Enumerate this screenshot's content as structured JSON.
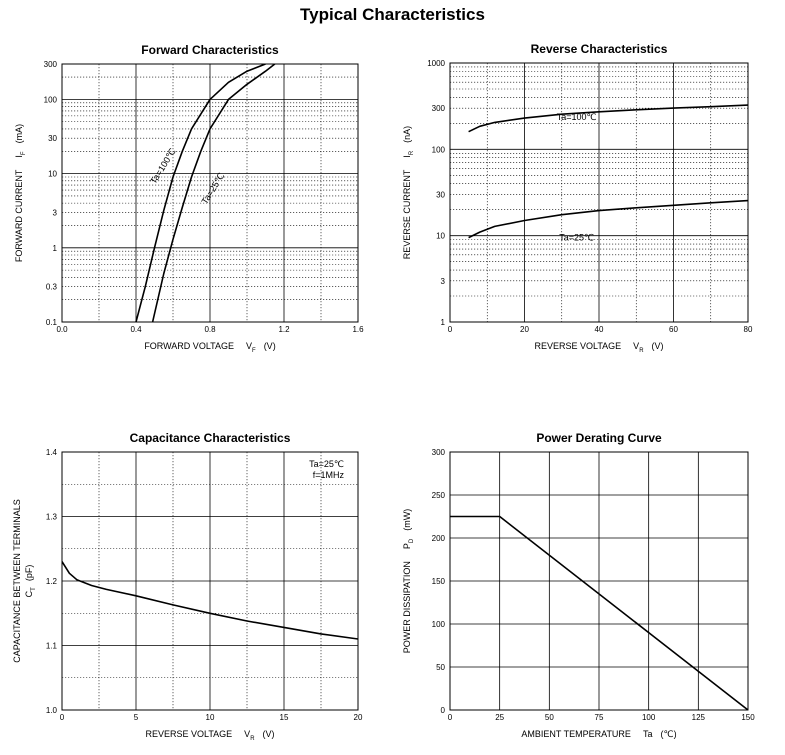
{
  "page": {
    "title": "Typical Characteristics"
  },
  "chart_data": [
    {
      "id": "forward",
      "type": "line",
      "title": "Forward Characteristics",
      "xlabel": "FORWARD VOLTAGE",
      "xlabel_symbol": "V",
      "xlabel_sub": "F",
      "xlabel_unit": "(V)",
      "ylabel": "FORWARD CURRENT",
      "ylabel_symbol": "I",
      "ylabel_sub": "F",
      "ylabel_unit": "(mA)",
      "xscale": "linear",
      "yscale": "log",
      "xlim": [
        0,
        1.6
      ],
      "ylim": [
        0.1,
        300
      ],
      "xticks": [
        0,
        0.4,
        0.8,
        1.2,
        1.6
      ],
      "xtick_labels": [
        "0.0",
        "0.4",
        "0.8",
        "1.2",
        "1.6"
      ],
      "xgrid_minor": [
        0.2,
        0.6,
        1.0,
        1.4
      ],
      "yticks": [
        0.1,
        0.3,
        1,
        3,
        10,
        30,
        100,
        300
      ],
      "ytick_labels": [
        "0.1",
        "0.3",
        "1",
        "3",
        "10",
        "30",
        "100",
        "300"
      ],
      "grid": true,
      "series": [
        {
          "name": "Ta=100℃",
          "label_at": [
            0.56,
            12
          ],
          "label_rotation": -58,
          "x": [
            0.4,
            0.45,
            0.5,
            0.55,
            0.6,
            0.65,
            0.7,
            0.8,
            0.9,
            1.0,
            1.1
          ],
          "y": [
            0.1,
            0.3,
            1.0,
            3.2,
            9,
            20,
            40,
            100,
            170,
            240,
            300
          ]
        },
        {
          "name": "Ta=25℃",
          "label_at": [
            0.83,
            6
          ],
          "label_rotation": -58,
          "x": [
            0.49,
            0.55,
            0.6,
            0.65,
            0.7,
            0.75,
            0.8,
            0.9,
            1.0,
            1.1,
            1.15
          ],
          "y": [
            0.1,
            0.45,
            1.3,
            3.5,
            9,
            20,
            40,
            100,
            160,
            240,
            300
          ]
        }
      ]
    },
    {
      "id": "reverse",
      "type": "line",
      "title": "Reverse Characteristics",
      "xlabel": "REVERSE VOLTAGE",
      "xlabel_symbol": "V",
      "xlabel_sub": "R",
      "xlabel_unit": "(V)",
      "ylabel": "REVERSE CURRENT",
      "ylabel_symbol": "I",
      "ylabel_sub": "R",
      "ylabel_unit": "(nA)",
      "xscale": "linear",
      "yscale": "log",
      "xlim": [
        0,
        80
      ],
      "ylim": [
        1,
        1000
      ],
      "xticks": [
        0,
        20,
        40,
        60,
        80
      ],
      "xtick_labels": [
        "0",
        "20",
        "40",
        "60",
        "80"
      ],
      "xgrid_minor": [
        10,
        30,
        50,
        70
      ],
      "yticks": [
        1,
        3,
        10,
        30,
        100,
        300,
        1000
      ],
      "ytick_labels": [
        "1",
        "3",
        "10",
        "30",
        "100",
        "300",
        "1000"
      ],
      "grid": true,
      "series": [
        {
          "name": "Ta=100℃",
          "label_at": [
            34,
            220
          ],
          "x": [
            5,
            8,
            12,
            20,
            30,
            40,
            50,
            60,
            70,
            80
          ],
          "y": [
            160,
            185,
            205,
            230,
            255,
            272,
            287,
            300,
            312,
            325
          ]
        },
        {
          "name": "Ta=25℃",
          "label_at": [
            34,
            8.8
          ],
          "x": [
            5,
            8,
            12,
            20,
            30,
            40,
            50,
            60,
            70,
            80
          ],
          "y": [
            9.5,
            11,
            12.8,
            15,
            17.5,
            19.5,
            21,
            22.5,
            24,
            25.5
          ]
        }
      ]
    },
    {
      "id": "capacitance",
      "type": "line",
      "title": "Capacitance Characteristics",
      "xlabel": "REVERSE VOLTAGE",
      "xlabel_symbol": "V",
      "xlabel_sub": "R",
      "xlabel_unit": "(V)",
      "ylabel": "CAPACITANCE BETWEEN TERMINALS",
      "ylabel2_symbol": "C",
      "ylabel2_sub": "T",
      "ylabel2_unit": "(pF)",
      "xscale": "linear",
      "yscale": "linear",
      "xlim": [
        0,
        20
      ],
      "ylim": [
        1.0,
        1.4
      ],
      "xticks": [
        0,
        5,
        10,
        15,
        20
      ],
      "xtick_labels": [
        "0",
        "5",
        "10",
        "15",
        "20"
      ],
      "xgrid_minor": [
        2.5,
        7.5,
        12.5,
        17.5
      ],
      "yticks": [
        1.0,
        1.1,
        1.2,
        1.3,
        1.4
      ],
      "ytick_labels": [
        "1.0",
        "1.1",
        "1.2",
        "1.3",
        "1.4"
      ],
      "ygrid_minor": [
        1.05,
        1.15,
        1.25,
        1.35
      ],
      "grid": true,
      "annotations": [
        "Ta=25℃",
        "f=1MHz"
      ],
      "series": [
        {
          "name": "",
          "x": [
            0,
            0.5,
            1,
            2,
            3,
            5,
            7.5,
            10,
            12.5,
            15,
            17.5,
            20
          ],
          "y": [
            1.23,
            1.212,
            1.202,
            1.193,
            1.187,
            1.177,
            1.163,
            1.15,
            1.138,
            1.128,
            1.118,
            1.11
          ]
        }
      ]
    },
    {
      "id": "power",
      "type": "line",
      "title": "Power Derating Curve",
      "xlabel": "AMBIENT TEMPERATURE",
      "xlabel_symbol": "Ta",
      "xlabel_unit": "(℃)",
      "ylabel": "POWER DISSIPATION",
      "ylabel_symbol": "P",
      "ylabel_sub": "D",
      "ylabel_unit": "(mW)",
      "xscale": "linear",
      "yscale": "linear",
      "xlim": [
        0,
        150
      ],
      "ylim": [
        0,
        300
      ],
      "xticks": [
        0,
        25,
        50,
        75,
        100,
        125,
        150
      ],
      "xtick_labels": [
        "0",
        "25",
        "50",
        "75",
        "100",
        "125",
        "150"
      ],
      "yticks": [
        0,
        50,
        100,
        150,
        200,
        250,
        300
      ],
      "ytick_labels": [
        "0",
        "50",
        "100",
        "150",
        "200",
        "250",
        "300"
      ],
      "grid": true,
      "series": [
        {
          "name": "",
          "x": [
            0,
            25,
            150
          ],
          "y": [
            225,
            225,
            0
          ]
        }
      ]
    }
  ]
}
